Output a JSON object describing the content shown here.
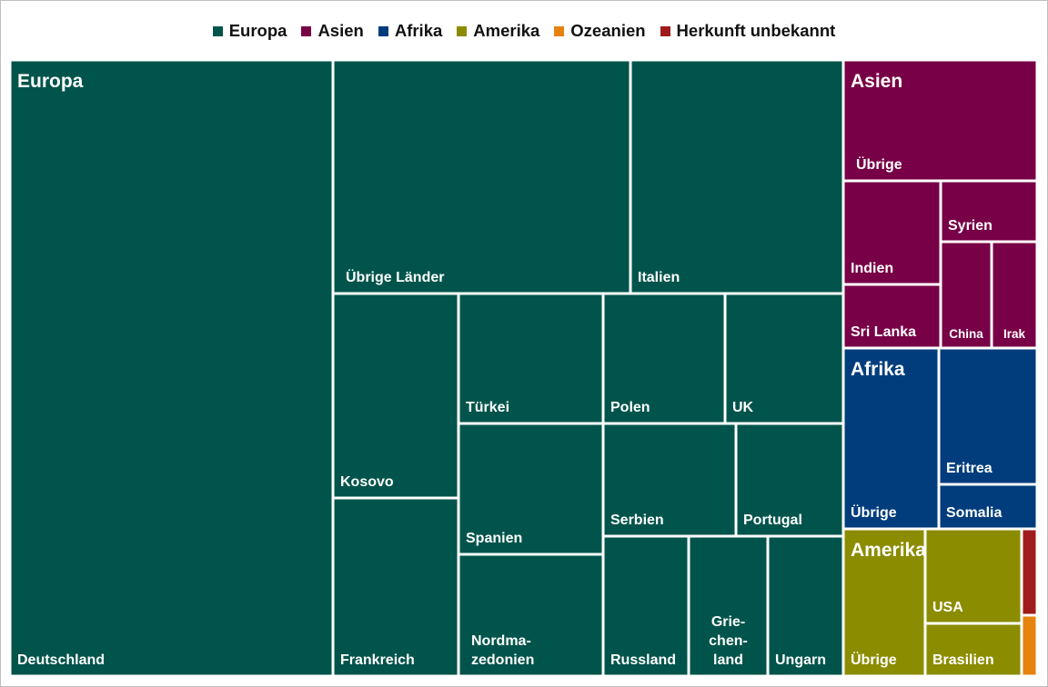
{
  "chart_data": {
    "type": "treemap",
    "title": "",
    "legend_position": "top",
    "colors": {
      "Europa": "#01544b",
      "Asien": "#780046",
      "Afrika": "#013d7d",
      "Amerika": "#8c8c00",
      "Ozeanien": "#e6820e",
      "Herkunft unbekannt": "#a01b1b"
    },
    "legend": [
      "Europa",
      "Asien",
      "Afrika",
      "Amerika",
      "Ozeanien",
      "Herkunft unbekannt"
    ],
    "groups": [
      {
        "name": "Europa",
        "items": [
          {
            "name": "Deutschland",
            "value": 251
          },
          {
            "name": "Übrige Länder",
            "value": 87
          },
          {
            "name": "Italien",
            "value": 62
          },
          {
            "name": "Kosovo",
            "value": 32
          },
          {
            "name": "Frankreich",
            "value": 28
          },
          {
            "name": "Türkei",
            "value": 23.5
          },
          {
            "name": "Spanien",
            "value": 23.5
          },
          {
            "name": "Nordmazedonien",
            "value": 22
          },
          {
            "name": "Polen",
            "value": 20
          },
          {
            "name": "UK",
            "value": 19.5
          },
          {
            "name": "Serbien",
            "value": 18
          },
          {
            "name": "Portugal",
            "value": 15
          },
          {
            "name": "Russland",
            "value": 13
          },
          {
            "name": "Griechenland",
            "value": 12
          },
          {
            "name": "Ungarn",
            "value": 11
          },
          {
            "name": "Ungarn",
            "value": 0
          }
        ]
      },
      {
        "name": "Asien",
        "items": [
          {
            "name": "Übrige",
            "value": 29
          },
          {
            "name": "Indien",
            "value": 12
          },
          {
            "name": "Sri Lanka",
            "value": 7.5
          },
          {
            "name": "Syrien",
            "value": 7
          },
          {
            "name": "China",
            "value": 5.6
          },
          {
            "name": "Irak",
            "value": 5
          }
        ]
      },
      {
        "name": "Afrika",
        "items": [
          {
            "name": "Übrige",
            "value": 21
          },
          {
            "name": "Eritrea",
            "value": 15
          },
          {
            "name": "Somalia",
            "value": 5.5
          }
        ]
      },
      {
        "name": "Amerika",
        "items": [
          {
            "name": "Übrige",
            "value": 13
          },
          {
            "name": "USA",
            "value": 11
          },
          {
            "name": "Brasilien",
            "value": 6.5
          }
        ]
      },
      {
        "name": "Herkunft unbekannt",
        "items": [
          {
            "name": "",
            "value": 1.3
          }
        ]
      },
      {
        "name": "Ozeanien",
        "items": [
          {
            "name": "",
            "value": 1.2
          }
        ]
      }
    ],
    "cell_labels": {
      "Nordmazedonien": [
        "Nordma-",
        "zedonien"
      ],
      "Griechenland": [
        "Grie-",
        "chen-",
        "land"
      ]
    }
  }
}
